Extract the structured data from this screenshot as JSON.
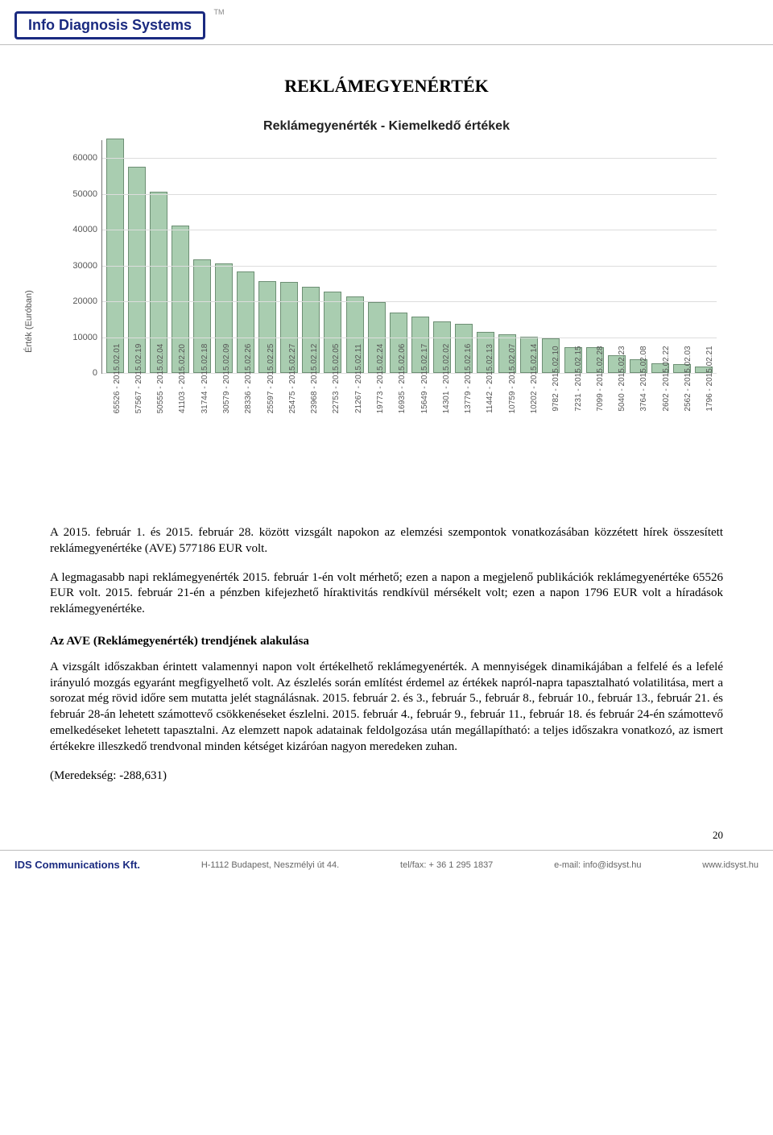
{
  "header": {
    "logo_text": "Info Diagnosis Systems",
    "tm": "TM"
  },
  "doc_title": "REKLÁMEGYENÉRTÉK",
  "chart": {
    "type": "bar",
    "title": "Reklámegyenérték - Kiemelkedő értékek",
    "y_axis_label": "Érték (Euróban)",
    "ylim_max": 65000,
    "yticks": [
      0,
      10000,
      20000,
      30000,
      40000,
      50000,
      60000
    ],
    "bar_fill": "#a9cdb0",
    "bar_border": "#6d8f74",
    "grid_color": "#dddddd",
    "axis_color": "#777777",
    "label_fontsize": 10,
    "series": [
      {
        "value": 65526,
        "label": "65526 - 2015.02.01"
      },
      {
        "value": 57567,
        "label": "57567 - 2015.02.19"
      },
      {
        "value": 50555,
        "label": "50555 - 2015.02.04"
      },
      {
        "value": 41103,
        "label": "41103 - 2015.02.20"
      },
      {
        "value": 31744,
        "label": "31744 - 2015.02.18"
      },
      {
        "value": 30579,
        "label": "30579 - 2015.02.09"
      },
      {
        "value": 28336,
        "label": "28336 - 2015.02.26"
      },
      {
        "value": 25597,
        "label": "25597 - 2015.02.25"
      },
      {
        "value": 25475,
        "label": "25475 - 2015.02.27"
      },
      {
        "value": 23968,
        "label": "23968 - 2015.02.12"
      },
      {
        "value": 22753,
        "label": "22753 - 2015.02.05"
      },
      {
        "value": 21267,
        "label": "21267 - 2015.02.11"
      },
      {
        "value": 19773,
        "label": "19773 - 2015.02.24"
      },
      {
        "value": 16935,
        "label": "16935 - 2015.02.06"
      },
      {
        "value": 15649,
        "label": "15649 - 2015.02.17"
      },
      {
        "value": 14301,
        "label": "14301 - 2015.02.02"
      },
      {
        "value": 13779,
        "label": "13779 - 2015.02.16"
      },
      {
        "value": 11442,
        "label": "11442 - 2015.02.13"
      },
      {
        "value": 10759,
        "label": "10759 - 2015.02.07"
      },
      {
        "value": 10202,
        "label": "10202 - 2015.02.14"
      },
      {
        "value": 9782,
        "label": "9782 - 2015.02.10"
      },
      {
        "value": 7231,
        "label": "7231 - 2015.02.15"
      },
      {
        "value": 7099,
        "label": "7099 - 2015.02.28"
      },
      {
        "value": 5040,
        "label": "5040 - 2015.02.23"
      },
      {
        "value": 3764,
        "label": "3764 - 2015.02.08"
      },
      {
        "value": 2602,
        "label": "2602 - 2015.02.22"
      },
      {
        "value": 2562,
        "label": "2562 - 2015.02.03"
      },
      {
        "value": 1796,
        "label": "1796 - 2015.02.21"
      }
    ]
  },
  "paragraph1": "A 2015. február 1. és 2015. február 28. között vizsgált napokon az elemzési szempontok vonatkozásában közzétett hírek összesített reklámegyenértéke (AVE) 577186 EUR volt.",
  "paragraph2": "A legmagasabb napi reklámegyenérték 2015. február 1-én volt mérhető; ezen a napon a megjelenő publikációk reklámegyenértéke 65526 EUR volt. 2015. február 21-én a pénzben kifejezhető híraktivitás rendkívül mérsékelt volt; ezen a napon 1796 EUR volt a híradások reklámegyenértéke.",
  "section_heading": "Az AVE (Reklámegyenérték) trendjének alakulása",
  "paragraph3": "A vizsgált időszakban érintett valamennyi napon volt értékelhető reklámegyenérték. A mennyiségek dinamikájában a felfelé és a lefelé irányuló mozgás egyaránt megfigyelhető volt. Az észlelés során említést érdemel az értékek napról-napra tapasztalható volatilitása, mert a sorozat még rövid időre sem mutatta jelét stagnálásnak. 2015. február 2. és 3., február 5., február 8., február 10., február 13., február 21. és február 28-án lehetett számottevő csökkenéseket észlelni. 2015. február 4., február 9., február 11., február 18. és február 24-én számottevő emelkedéseket lehetett tapasztalni. Az elemzett napok adatainak feldolgozása után megállapítható: a teljes időszakra vonatkozó, az ismert értékekre illeszkedő trendvonal minden kétséget kizáróan nagyon meredeken zuhan.",
  "paragraph4": "(Meredekség: -288,631)",
  "page_number": "20",
  "footer": {
    "company": "IDS Communications Kft.",
    "address": "H-1112 Budapest, Neszmélyi út 44.",
    "telfax": "tel/fax: + 36 1 295 1837",
    "email": "e-mail: info@idsyst.hu",
    "web": "www.idsyst.hu"
  }
}
